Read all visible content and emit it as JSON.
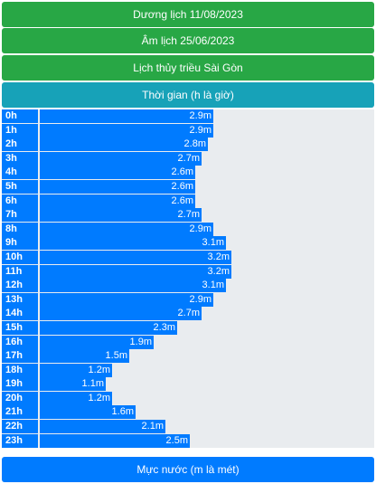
{
  "headers": {
    "solar": "Dương lịch 11/08/2023",
    "lunar": "Âm lịch 25/06/2023",
    "title": "Lịch thủy triều Sài Gòn",
    "x_axis": "Thời gian (h là giờ)",
    "y_axis": "Mực nước (m là mét)"
  },
  "colors": {
    "header_green": "#28a745",
    "header_teal": "#17a2b8",
    "bar_blue": "#007bff",
    "track": "#e9ecef"
  },
  "chart_data": {
    "type": "bar",
    "orientation": "horizontal",
    "categories": [
      "0h",
      "1h",
      "2h",
      "3h",
      "4h",
      "5h",
      "6h",
      "7h",
      "8h",
      "9h",
      "10h",
      "11h",
      "12h",
      "13h",
      "14h",
      "15h",
      "16h",
      "17h",
      "18h",
      "19h",
      "20h",
      "21h",
      "22h",
      "23h"
    ],
    "values": [
      2.9,
      2.9,
      2.8,
      2.7,
      2.6,
      2.6,
      2.6,
      2.7,
      2.9,
      3.1,
      3.2,
      3.2,
      3.1,
      2.9,
      2.7,
      2.3,
      1.9,
      1.5,
      1.2,
      1.1,
      1.2,
      1.6,
      2.1,
      2.5
    ],
    "value_labels": [
      "2.9m",
      "2.9m",
      "2.8m",
      "2.7m",
      "2.6m",
      "2.6m",
      "2.6m",
      "2.7m",
      "2.9m",
      "3.1m",
      "3.2m",
      "3.2m",
      "3.1m",
      "2.9m",
      "2.7m",
      "2.3m",
      "1.9m",
      "1.5m",
      "1.2m",
      "1.1m",
      "1.2m",
      "1.6m",
      "2.1m",
      "2.5m"
    ],
    "xlabel": "Thời gian (h là giờ)",
    "ylabel": "Mực nước (m là mét)",
    "unit": "m"
  }
}
